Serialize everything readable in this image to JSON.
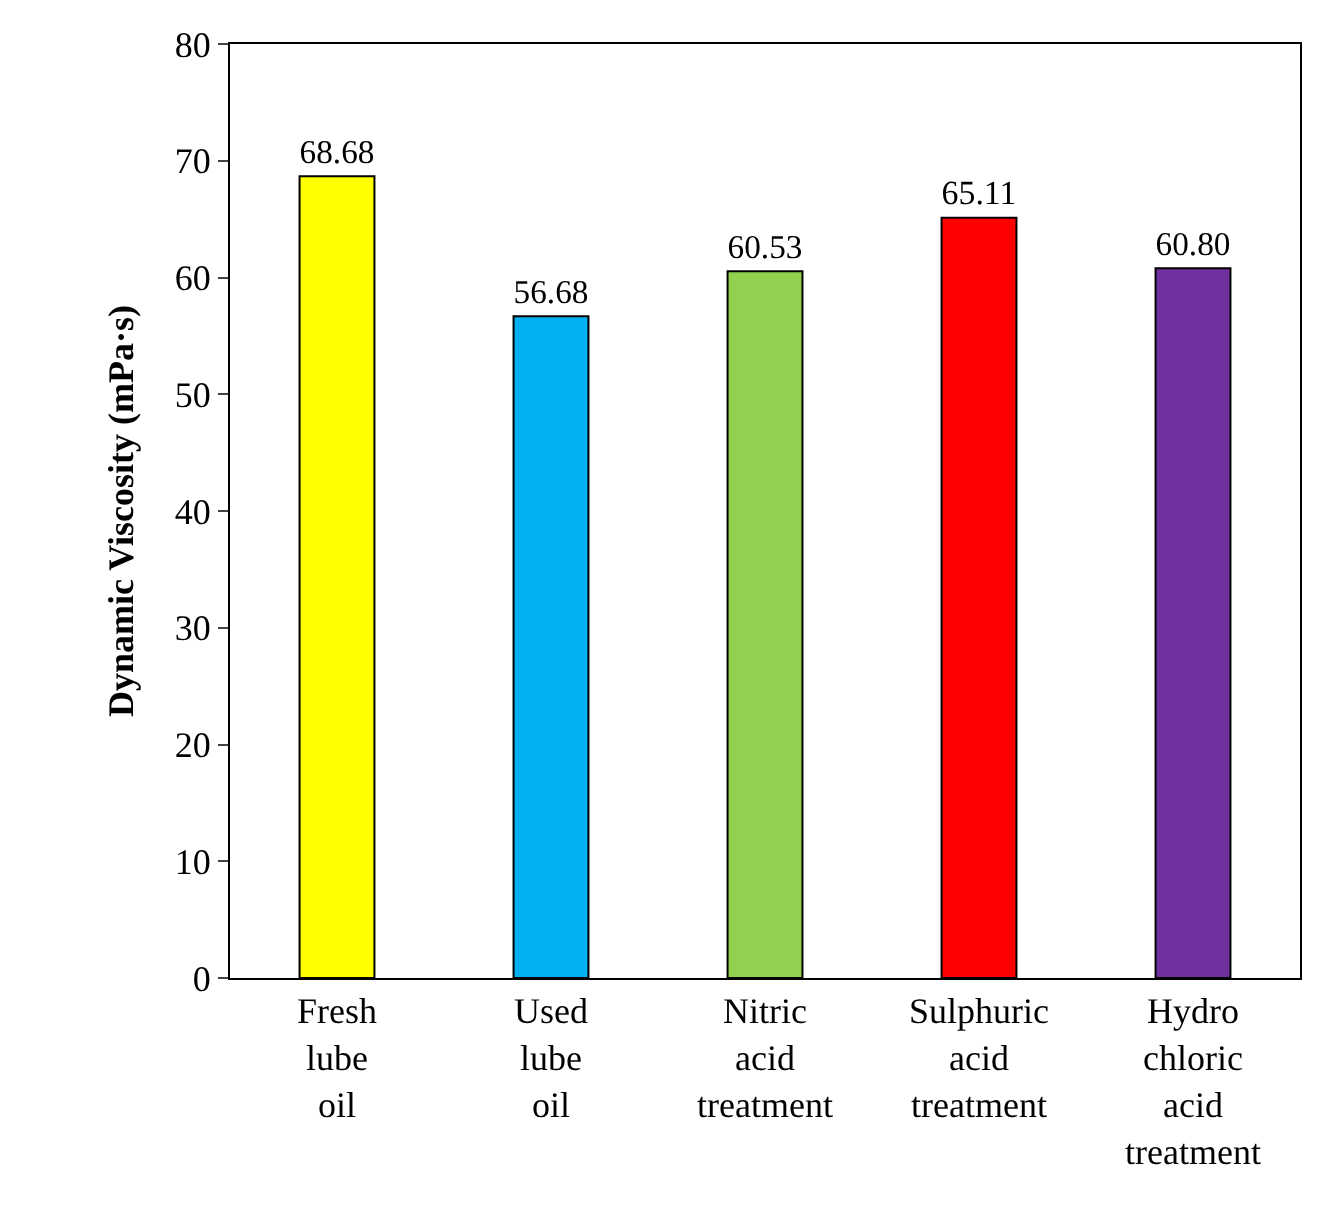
{
  "chart_data": {
    "type": "bar",
    "ylabel": "Dynamic Viscosity (mPa·s)",
    "categories": [
      "Fresh lube oil",
      "Used lube oil",
      "Nitric acid treatment",
      "Sulphuric acid treatment",
      "Hydro chloric acid treatment"
    ],
    "values": [
      68.68,
      56.68,
      60.53,
      65.11,
      60.8
    ],
    "value_labels": [
      "68.68",
      "56.68",
      "60.53",
      "65.11",
      "60.80"
    ],
    "colors": [
      "#ffff00",
      "#00b0f0",
      "#92d050",
      "#ff0000",
      "#7030a0"
    ],
    "ylim": [
      0,
      80
    ],
    "yticks": [
      0,
      10,
      20,
      30,
      40,
      50,
      60,
      70,
      80
    ],
    "legend": false
  }
}
